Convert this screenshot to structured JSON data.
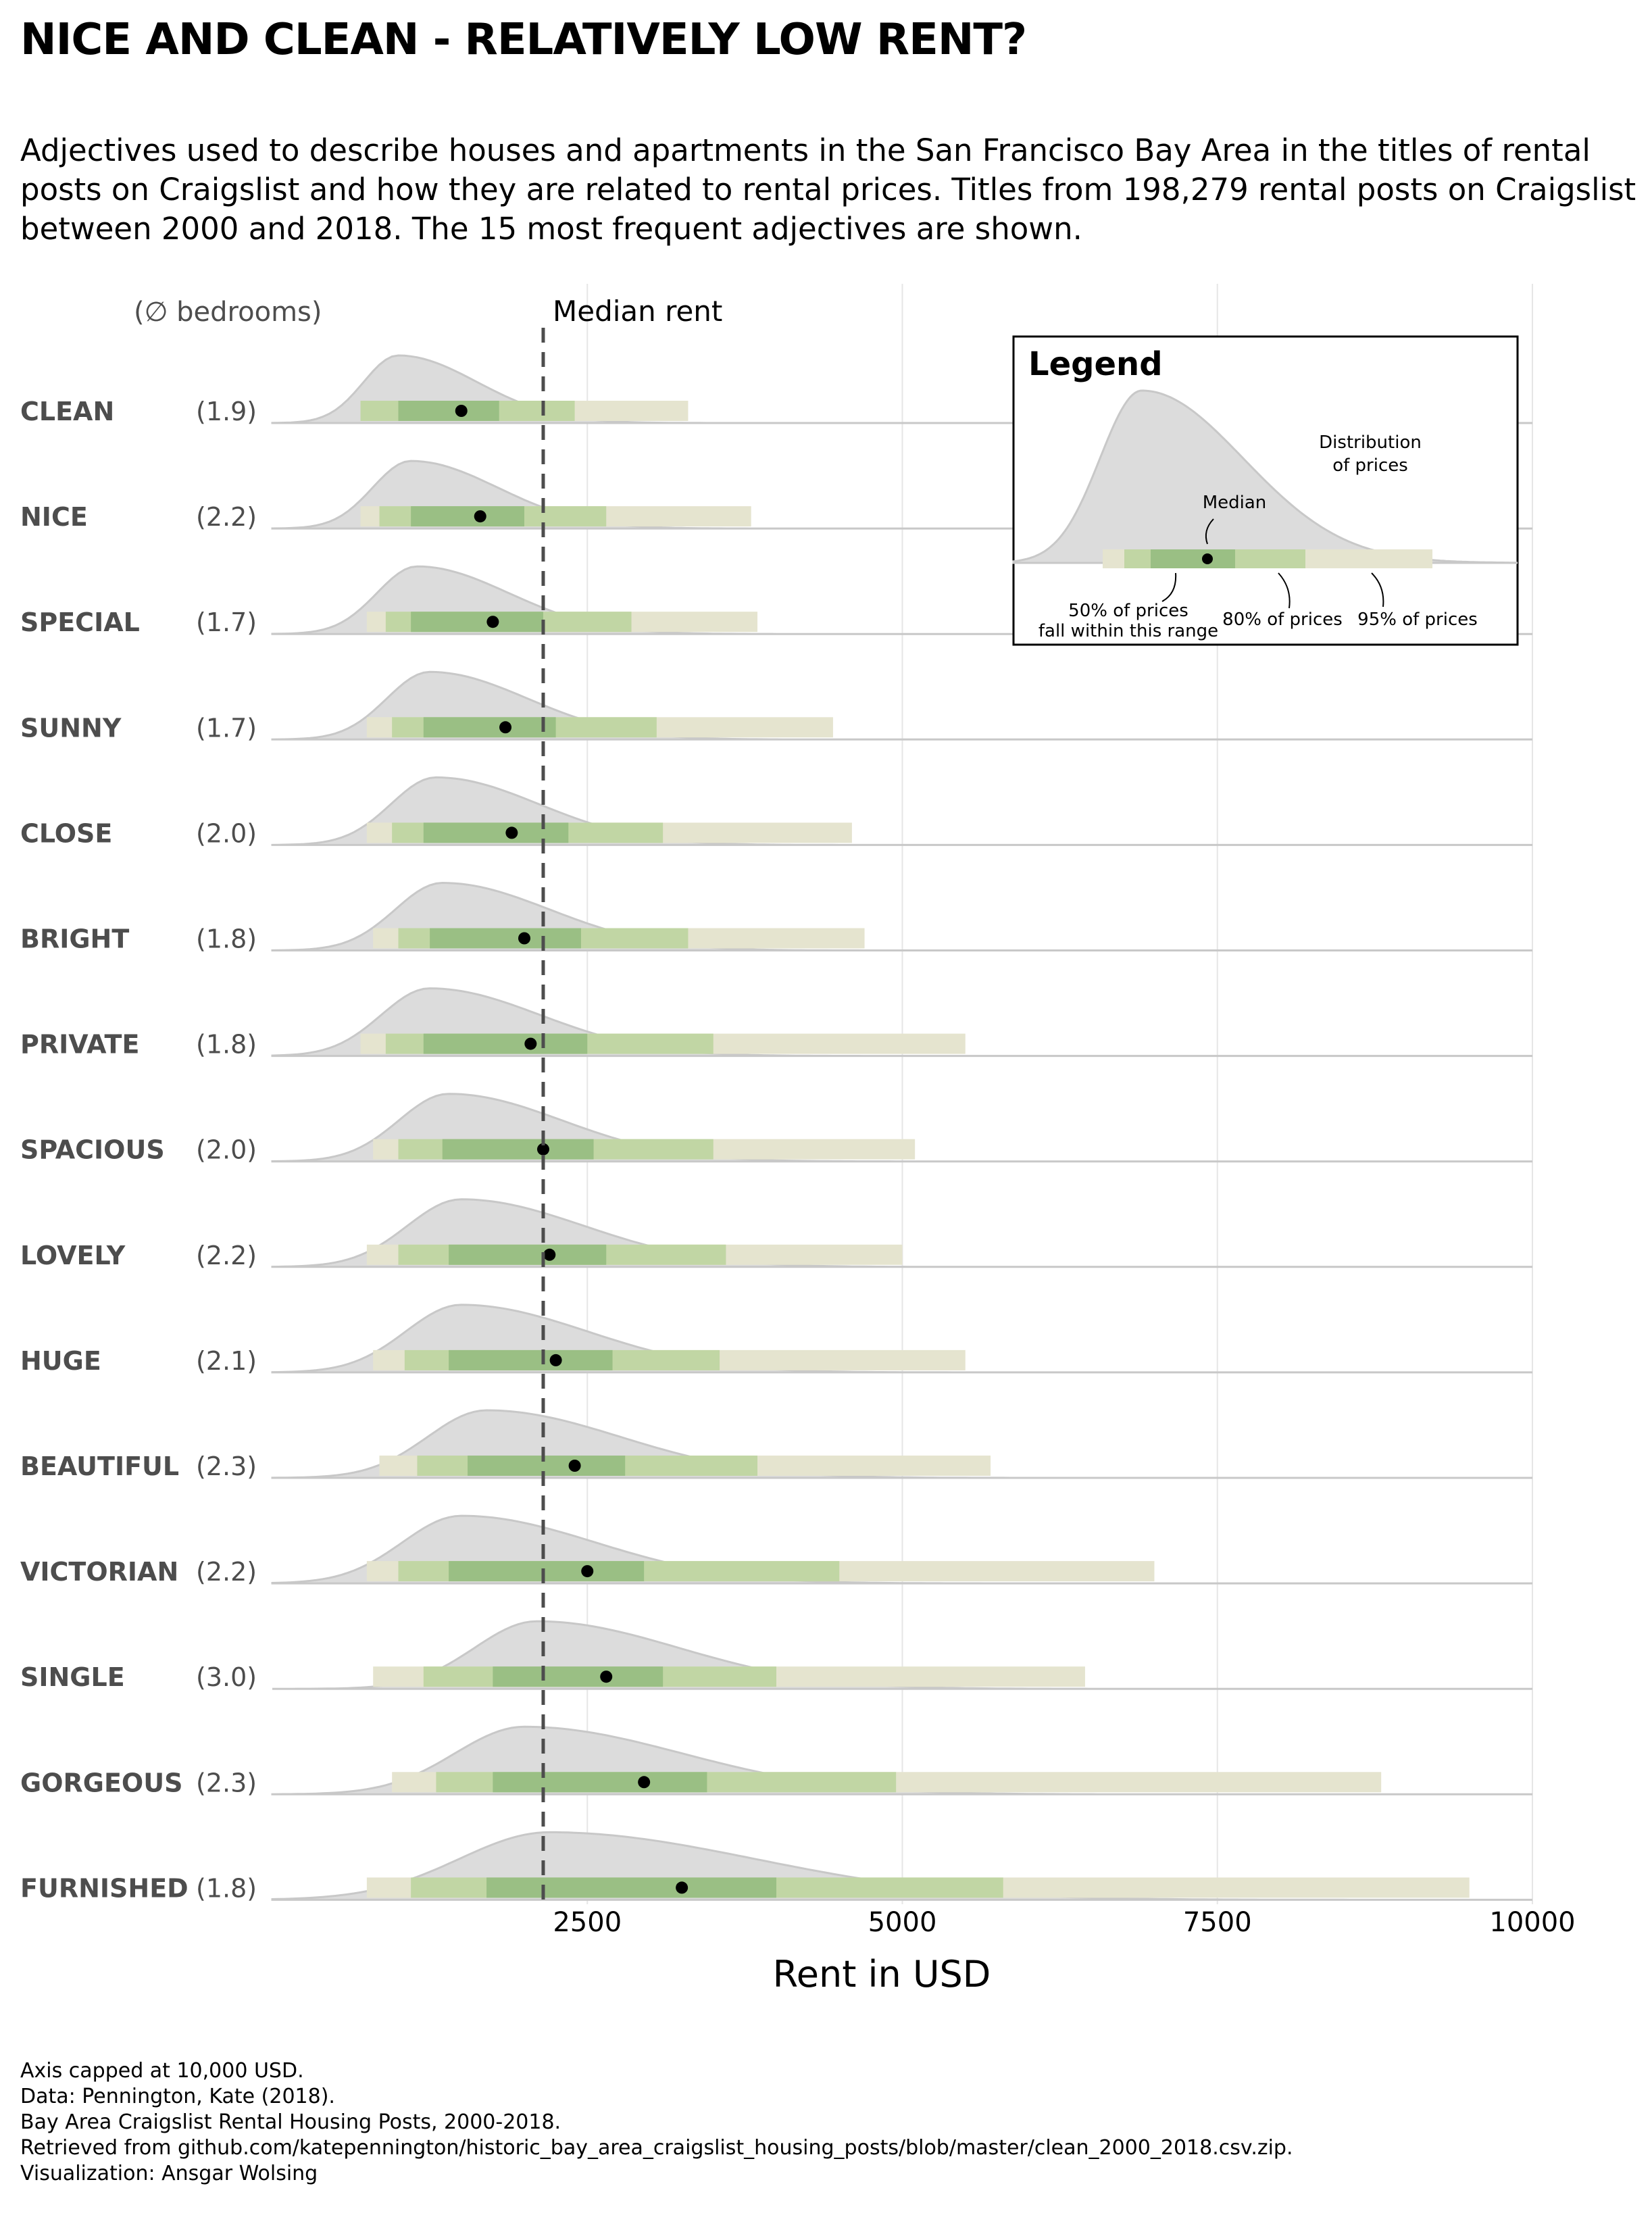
{
  "title": "NICE AND CLEAN - RELATIVELY LOW RENT?",
  "subtitle_lines": [
    "Adjectives used to describe houses and apartments in the San Francisco Bay Area in the titles of rental",
    "posts on Craigslist and how they are related to rental prices. Titles from 198,279 rental posts on Craigslist",
    "between 2000 and 2018. The 15 most frequent adjectives are shown."
  ],
  "column_header": "(∅ bedrooms)",
  "median_label": "Median rent",
  "caption_lines": [
    "Axis capped at 10,000 USD.",
    "Data: Pennington, Kate (2018).",
    "Bay Area Craigslist Rental Housing Posts, 2000-2018.",
    "Retrieved from github.com/katepennington/historic_bay_area_craigslist_housing_posts/blob/master/clean_2000_2018.csv.zip.",
    "Visualization: Ansgar Wolsing"
  ],
  "legend": {
    "title": "Legend",
    "distribution_label": [
      "Distribution",
      "of prices"
    ],
    "median_label": "Median",
    "range50_label": [
      "50% of prices",
      "fall within this range"
    ],
    "range80_label": "80% of prices",
    "range95_label": "95% of prices"
  },
  "colors": {
    "density_fill": "#dcdcdc",
    "density_line": "#c8c8c8",
    "range95": "#e5e4cf",
    "range80": "#c1d6a4",
    "range50": "#9abf84",
    "median_dot": "#000000",
    "median_line": "#4d4d4d",
    "label_gray": "#4d4d4d"
  },
  "chart_data": {
    "type": "interval",
    "xlabel": "Rent in USD",
    "xlim": [
      0,
      10000
    ],
    "x_ticks": [
      2500,
      5000,
      7500,
      10000
    ],
    "overall_median": 2150,
    "grid": "vertical",
    "rows": [
      {
        "label": "CLEAN",
        "bedrooms": "(1.9)",
        "median": 1500,
        "q50": [
          1000,
          1800
        ],
        "q80": [
          700,
          2400
        ],
        "q95": [
          700,
          3300
        ],
        "density_peak": 1000,
        "density_sd": 500
      },
      {
        "label": "NICE",
        "bedrooms": "(2.2)",
        "median": 1650,
        "q50": [
          1100,
          2000
        ],
        "q80": [
          850,
          2650
        ],
        "q95": [
          700,
          3800
        ],
        "density_peak": 1100,
        "density_sd": 550
      },
      {
        "label": "SPECIAL",
        "bedrooms": "(1.7)",
        "median": 1750,
        "q50": [
          1100,
          2150
        ],
        "q80": [
          900,
          2850
        ],
        "q95": [
          750,
          3850
        ],
        "density_peak": 1150,
        "density_sd": 580
      },
      {
        "label": "SUNNY",
        "bedrooms": "(1.7)",
        "median": 1850,
        "q50": [
          1200,
          2250
        ],
        "q80": [
          950,
          3050
        ],
        "q95": [
          750,
          4450
        ],
        "density_peak": 1250,
        "density_sd": 620
      },
      {
        "label": "CLOSE",
        "bedrooms": "(2.0)",
        "median": 1900,
        "q50": [
          1200,
          2350
        ],
        "q80": [
          950,
          3100
        ],
        "q95": [
          750,
          4600
        ],
        "density_peak": 1300,
        "density_sd": 650
      },
      {
        "label": "BRIGHT",
        "bedrooms": "(1.8)",
        "median": 2000,
        "q50": [
          1250,
          2450
        ],
        "q80": [
          1000,
          3300
        ],
        "q95": [
          800,
          4700
        ],
        "density_peak": 1350,
        "density_sd": 680
      },
      {
        "label": "PRIVATE",
        "bedrooms": "(1.8)",
        "median": 2050,
        "q50": [
          1200,
          2500
        ],
        "q80": [
          900,
          3500
        ],
        "q95": [
          700,
          5500
        ],
        "density_peak": 1250,
        "density_sd": 700
      },
      {
        "label": "SPACIOUS",
        "bedrooms": "(2.0)",
        "median": 2150,
        "q50": [
          1350,
          2550
        ],
        "q80": [
          1000,
          3500
        ],
        "q95": [
          800,
          5100
        ],
        "density_peak": 1400,
        "density_sd": 720
      },
      {
        "label": "LOVELY",
        "bedrooms": "(2.2)",
        "median": 2200,
        "q50": [
          1400,
          2650
        ],
        "q80": [
          1000,
          3600
        ],
        "q95": [
          750,
          5000
        ],
        "density_peak": 1500,
        "density_sd": 780
      },
      {
        "label": "HUGE",
        "bedrooms": "(2.1)",
        "median": 2250,
        "q50": [
          1400,
          2700
        ],
        "q80": [
          1050,
          3550
        ],
        "q95": [
          800,
          5500
        ],
        "density_peak": 1500,
        "density_sd": 800
      },
      {
        "label": "BEAUTIFUL",
        "bedrooms": "(2.3)",
        "median": 2400,
        "q50": [
          1550,
          2800
        ],
        "q80": [
          1150,
          3850
        ],
        "q95": [
          850,
          5700
        ],
        "density_peak": 1700,
        "density_sd": 850
      },
      {
        "label": "VICTORIAN",
        "bedrooms": "(2.2)",
        "median": 2500,
        "q50": [
          1400,
          2950
        ],
        "q80": [
          1000,
          4500
        ],
        "q95": [
          750,
          7000
        ],
        "density_peak": 1500,
        "density_sd": 850
      },
      {
        "label": "SINGLE",
        "bedrooms": "(3.0)",
        "median": 2650,
        "q50": [
          1750,
          3100
        ],
        "q80": [
          1200,
          4000
        ],
        "q95": [
          800,
          6450
        ],
        "density_peak": 2100,
        "density_sd": 900
      },
      {
        "label": "GORGEOUS",
        "bedrooms": "(2.3)",
        "median": 2950,
        "q50": [
          1750,
          3450
        ],
        "q80": [
          1300,
          4950
        ],
        "q95": [
          950,
          8800
        ],
        "density_peak": 2000,
        "density_sd": 1000
      },
      {
        "label": "FURNISHED",
        "bedrooms": "(1.8)",
        "median": 3250,
        "q50": [
          1700,
          4000
        ],
        "q80": [
          1100,
          5800
        ],
        "q95": [
          750,
          9500
        ],
        "density_peak": 2200,
        "density_sd": 1300
      }
    ]
  }
}
